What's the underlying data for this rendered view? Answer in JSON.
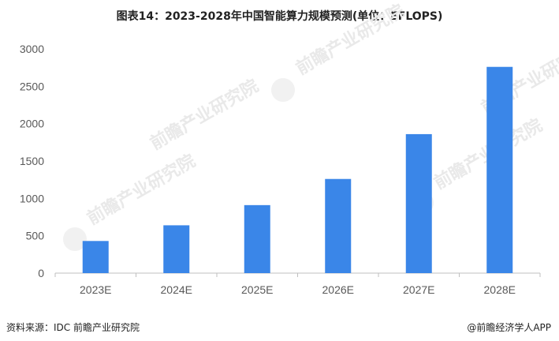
{
  "title": "图表14：2023-2028年中国智能算力规模预测(单位：EFLOPS)",
  "footer": {
    "source": "资料来源：IDC 前瞻产业研究院",
    "brand": "@前瞻经济学人APP"
  },
  "watermark": "前瞻产业研究院",
  "colors": {
    "bar": "#3a86e8",
    "axis": "#bfbfbf",
    "tick_text": "#595959"
  },
  "chart_data": {
    "type": "bar",
    "categories": [
      "2023E",
      "2024E",
      "2025E",
      "2026E",
      "2027E",
      "2028E"
    ],
    "values": [
      430,
      640,
      910,
      1260,
      1860,
      2760
    ],
    "ylim": [
      0,
      3000
    ],
    "yticks": [
      0,
      500,
      1000,
      1500,
      2000,
      2500,
      3000
    ],
    "grid": false,
    "legend": "none"
  }
}
